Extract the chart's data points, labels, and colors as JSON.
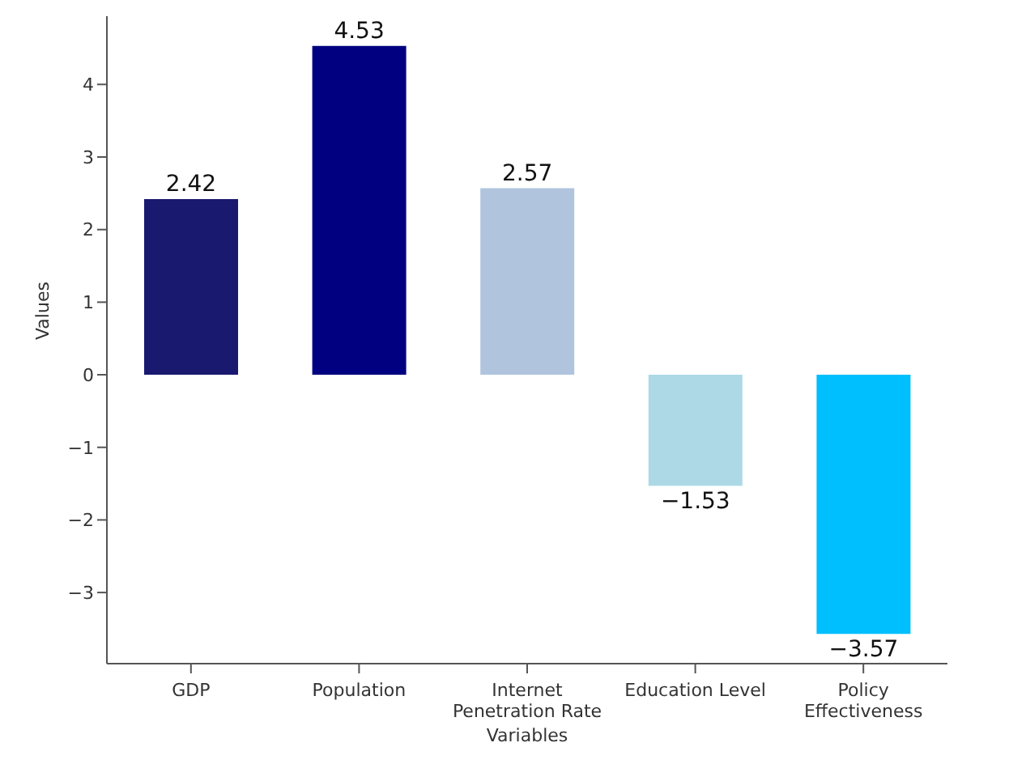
{
  "chart_data": {
    "type": "bar",
    "xlabel": "Variables",
    "ylabel": "Values",
    "categories": [
      "GDP",
      "Population",
      "Internet Penetration Rate",
      "Education Level",
      "Policy Effectiveness"
    ],
    "values": [
      2.42,
      4.53,
      2.57,
      -1.53,
      -3.57
    ],
    "colors": [
      "#191970",
      "#000080",
      "#b0c4de",
      "#add8e6",
      "#00bfff"
    ],
    "ylim": [
      -3.98,
      4.94
    ],
    "yticks": [
      -3,
      -2,
      -1,
      0,
      1,
      2,
      3,
      4
    ],
    "data_labels": true,
    "grid": false,
    "legend": false
  }
}
